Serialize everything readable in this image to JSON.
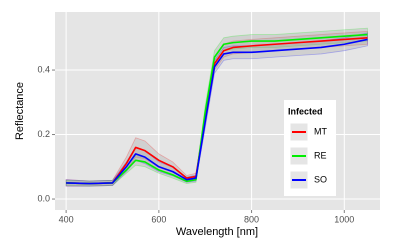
{
  "chart_data": {
    "type": "line",
    "x_label": "Wavelength [nm]",
    "y_label": "Reflectance",
    "legend_title": "Infected",
    "legend_position": "inside-right",
    "grid": true,
    "x": [
      400,
      450,
      500,
      530,
      550,
      570,
      600,
      630,
      660,
      680,
      700,
      720,
      740,
      760,
      800,
      850,
      900,
      950,
      1000,
      1050
    ],
    "xlim": [
      376,
      1077
    ],
    "xticks": [
      400,
      600,
      800,
      1000
    ],
    "ylim": [
      -0.034,
      0.58
    ],
    "yticks": [
      {
        "value": 0,
        "label": "0.0"
      },
      0.2,
      0.4
    ],
    "series": [
      {
        "name": "MT",
        "color": "#ff0000",
        "values": [
          0.05,
          0.048,
          0.05,
          0.11,
          0.16,
          0.15,
          0.12,
          0.1,
          0.065,
          0.07,
          0.25,
          0.42,
          0.46,
          0.47,
          0.475,
          0.48,
          0.485,
          0.49,
          0.495,
          0.5
        ],
        "lower": [
          0.04,
          0.04,
          0.042,
          0.09,
          0.13,
          0.125,
          0.1,
          0.085,
          0.057,
          0.06,
          0.23,
          0.4,
          0.44,
          0.45,
          0.455,
          0.46,
          0.465,
          0.47,
          0.475,
          0.48
        ],
        "upper": [
          0.06,
          0.056,
          0.058,
          0.13,
          0.19,
          0.18,
          0.14,
          0.115,
          0.073,
          0.08,
          0.27,
          0.44,
          0.48,
          0.49,
          0.495,
          0.5,
          0.505,
          0.51,
          0.515,
          0.52
        ]
      },
      {
        "name": "RE",
        "color": "#00ee00",
        "values": [
          0.05,
          0.048,
          0.05,
          0.09,
          0.12,
          0.115,
          0.09,
          0.075,
          0.055,
          0.06,
          0.27,
          0.44,
          0.48,
          0.485,
          0.49,
          0.49,
          0.495,
          0.5,
          0.505,
          0.51
        ],
        "lower": [
          0.042,
          0.04,
          0.042,
          0.08,
          0.105,
          0.1,
          0.08,
          0.065,
          0.048,
          0.052,
          0.25,
          0.42,
          0.46,
          0.465,
          0.47,
          0.47,
          0.475,
          0.48,
          0.485,
          0.49
        ],
        "upper": [
          0.058,
          0.056,
          0.058,
          0.1,
          0.135,
          0.13,
          0.1,
          0.085,
          0.062,
          0.068,
          0.29,
          0.46,
          0.5,
          0.505,
          0.51,
          0.51,
          0.515,
          0.52,
          0.525,
          0.53
        ]
      },
      {
        "name": "SO",
        "color": "#0000ff",
        "values": [
          0.05,
          0.048,
          0.05,
          0.1,
          0.14,
          0.13,
          0.1,
          0.085,
          0.06,
          0.065,
          0.24,
          0.41,
          0.45,
          0.455,
          0.455,
          0.46,
          0.465,
          0.47,
          0.48,
          0.495
        ],
        "lower": [
          0.04,
          0.04,
          0.042,
          0.085,
          0.12,
          0.11,
          0.085,
          0.072,
          0.052,
          0.056,
          0.22,
          0.39,
          0.43,
          0.435,
          0.435,
          0.44,
          0.445,
          0.45,
          0.46,
          0.475
        ],
        "upper": [
          0.06,
          0.056,
          0.058,
          0.115,
          0.16,
          0.15,
          0.115,
          0.098,
          0.068,
          0.074,
          0.26,
          0.43,
          0.47,
          0.475,
          0.475,
          0.48,
          0.485,
          0.49,
          0.5,
          0.515
        ]
      }
    ]
  }
}
